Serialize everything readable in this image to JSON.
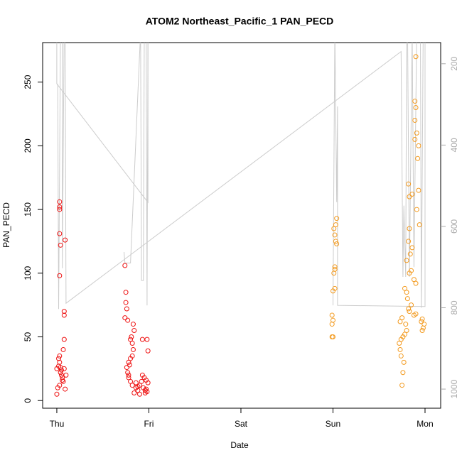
{
  "chart_data": {
    "type": "scatter",
    "title": "ATOM2 Northeast_Pacific_1 PAN_PECD",
    "xlabel": "Date",
    "ylabel": "PAN_PECD",
    "xlim": [
      -0.154,
      4.17
    ],
    "ylim": [
      -6,
      281
    ],
    "y2lim": [
      1047,
      148
    ],
    "xticks": [
      {
        "value": 0,
        "label": "Thu"
      },
      {
        "value": 1,
        "label": "Fri"
      },
      {
        "value": 2,
        "label": "Sat"
      },
      {
        "value": 3,
        "label": "Sun"
      },
      {
        "value": 4,
        "label": "Mon"
      }
    ],
    "yticks": [
      0,
      50,
      100,
      150,
      200,
      250
    ],
    "y2ticks": [
      200,
      400,
      600,
      800,
      1000
    ],
    "series": [
      {
        "color": "#ee1111",
        "x": [
          0.0,
          0.01,
          0.0,
          0.02,
          0.02,
          0.03,
          0.03,
          0.04,
          0.04,
          0.05,
          0.05,
          0.06,
          0.06,
          0.07,
          0.03,
          0.09,
          0.07,
          0.08,
          0.08,
          0.08,
          0.03,
          0.04,
          0.09,
          0.03,
          0.03,
          0.03,
          0.03,
          0.08,
          0.1,
          0.74,
          0.75,
          0.75,
          0.76,
          0.74,
          0.77,
          0.84,
          0.83,
          0.81,
          0.8,
          0.82,
          0.83,
          0.82,
          0.8,
          0.78,
          0.79,
          0.76,
          0.77,
          0.78,
          0.78,
          0.8,
          0.82,
          0.86,
          0.88,
          0.84,
          0.9,
          0.93,
          0.98,
          0.99,
          0.9,
          0.94,
          0.96,
          0.92,
          0.95,
          0.93,
          0.97,
          0.98,
          0.96,
          0.97,
          0.99,
          0.88,
          0.86
        ],
        "values": [
          5,
          10,
          25,
          27,
          33,
          35,
          30,
          26,
          22,
          24,
          20,
          18,
          16,
          15,
          12,
          9,
          40,
          48,
          67,
          70,
          98,
          122,
          126,
          131,
          150,
          152,
          156,
          25,
          20,
          106,
          85,
          77,
          72,
          65,
          63,
          55,
          60,
          50,
          48,
          45,
          40,
          35,
          33,
          30,
          28,
          26,
          22,
          20,
          18,
          15,
          12,
          10,
          8,
          6,
          5,
          48,
          48,
          39,
          12,
          10,
          8,
          15,
          18,
          20,
          9,
          7,
          6,
          16,
          14,
          11,
          14
        ]
      },
      {
        "color": "#f39a1e",
        "x": [
          2.99,
          3.0,
          2.99,
          3.0,
          2.99,
          3.0,
          3.02,
          3.01,
          3.02,
          3.02,
          3.04,
          3.03,
          3.02,
          3.01,
          3.03,
          3.04,
          3.75,
          3.76,
          3.77,
          3.74,
          3.73,
          3.72,
          3.74,
          3.76,
          3.78,
          3.8,
          3.79,
          3.73,
          3.75,
          3.83,
          3.82,
          3.85,
          3.81,
          3.8,
          3.78,
          3.9,
          3.88,
          3.83,
          3.85,
          3.8,
          3.84,
          3.86,
          3.82,
          3.83,
          3.94,
          3.91,
          3.83,
          3.86,
          3.93,
          3.82,
          3.92,
          3.93,
          3.89,
          3.91,
          3.89,
          3.9,
          3.89,
          3.9,
          3.97,
          3.98,
          3.99,
          3.96,
          3.97,
          3.88,
          3.9
        ],
        "values": [
          50,
          50,
          60,
          63,
          67,
          86,
          88,
          100,
          103,
          105,
          123,
          125,
          130,
          135,
          138,
          143,
          12,
          22,
          30,
          35,
          40,
          45,
          48,
          50,
          52,
          55,
          60,
          62,
          65,
          70,
          72,
          75,
          80,
          85,
          88,
          92,
          95,
          100,
          102,
          110,
          115,
          120,
          125,
          135,
          138,
          150,
          160,
          162,
          165,
          170,
          190,
          200,
          205,
          210,
          220,
          230,
          235,
          270,
          55,
          57,
          60,
          62,
          64,
          67,
          68
        ]
      },
      {
        "type": "line",
        "axis": "y2",
        "color": "#cccccc",
        "x": [
          0.0,
          0.0,
          0.99,
          0.99,
          null,
          0.01,
          0.02,
          0.04,
          0.06,
          0.06,
          0.08,
          0.09,
          0.1,
          3.74,
          3.76,
          3.77,
          3.79,
          3.8,
          3.81,
          3.83,
          3.86,
          3.88,
          3.91,
          3.95,
          3.96,
          3.98,
          4.0,
          4.0,
          null,
          0.73,
          0.74,
          0.78,
          0.8,
          0.91,
          0.92,
          0.94,
          0.95,
          0.97,
          0.98,
          0.99,
          null,
          3.0,
          3.02,
          3.04,
          3.05,
          3.05,
          3.05,
          4.0,
          4.0
        ],
        "values": [
          120,
          249,
          541,
          120,
          null,
          249,
          803,
          120,
          120,
          703,
          120,
          120,
          789,
          170,
          724,
          549,
          724,
          120,
          120,
          724,
          120,
          700,
          120,
          120,
          800,
          120,
          120,
          776,
          null,
          663,
          690,
          690,
          690,
          120,
          733,
          733,
          120,
          120,
          794,
          120,
          null,
          794,
          120,
          540,
          305,
          520,
          794,
          797,
          120
        ]
      }
    ]
  }
}
